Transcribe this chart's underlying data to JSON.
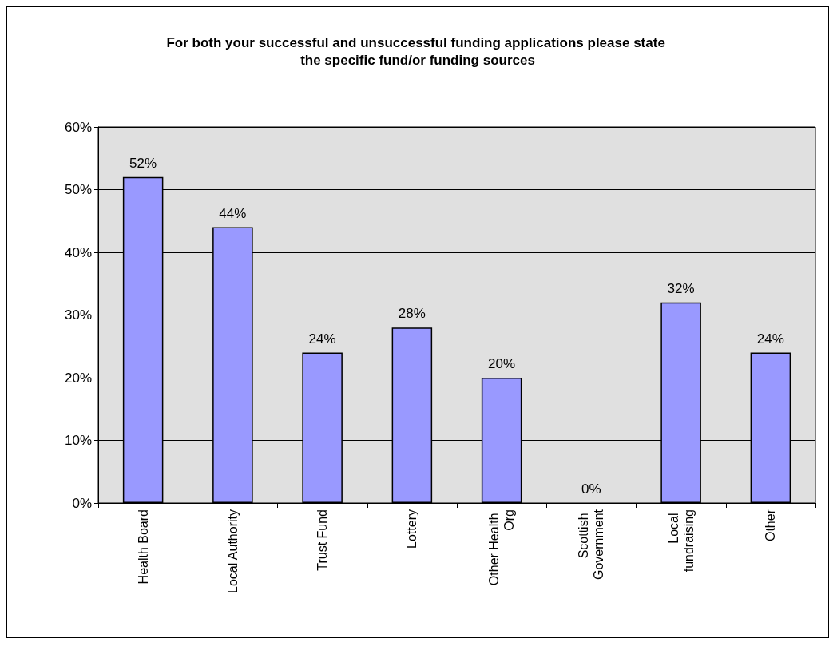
{
  "chart_data": {
    "type": "bar",
    "title": "For both your successful and unsuccessful funding applications please state the specific fund/or funding sources",
    "categories": [
      "Health Board",
      "Local Authority",
      "Trust Fund",
      "Lottery",
      "Other Health Org",
      "Scottish Government",
      "Local fundraising",
      "Other"
    ],
    "values": [
      52,
      44,
      24,
      28,
      20,
      0,
      32,
      24
    ],
    "value_labels": [
      "52%",
      "44%",
      "24%",
      "28%",
      "20%",
      "0%",
      "32%",
      "24%"
    ],
    "color": "#9999ff",
    "ylim": [
      0,
      60
    ],
    "yticks": [
      {
        "value": 0,
        "label": "0%"
      },
      {
        "value": 10,
        "label": "10%"
      },
      {
        "value": 20,
        "label": "20%"
      },
      {
        "value": 30,
        "label": "30%"
      },
      {
        "value": 40,
        "label": "40%"
      },
      {
        "value": 50,
        "label": "50%"
      },
      {
        "value": 60,
        "label": "60%"
      }
    ],
    "grid": "y"
  }
}
